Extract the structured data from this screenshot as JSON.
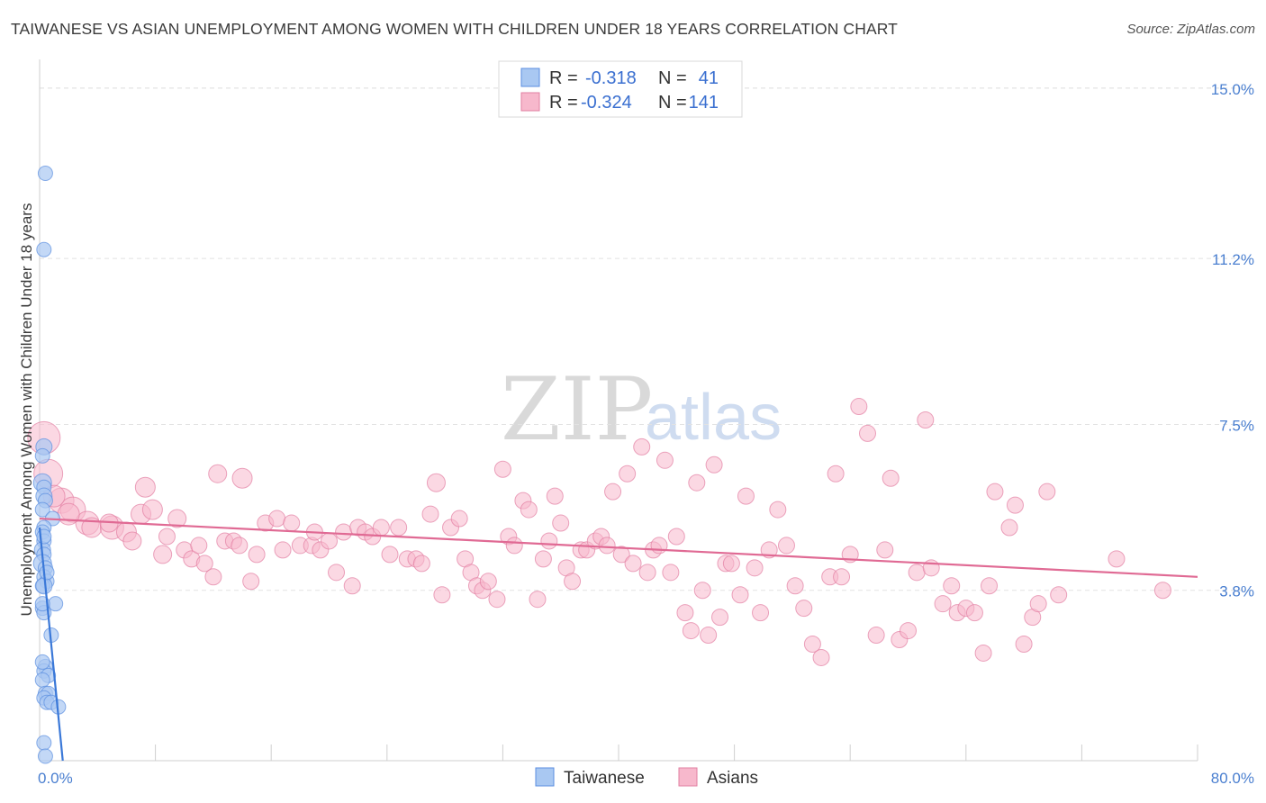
{
  "title": "TAIWANESE VS ASIAN UNEMPLOYMENT AMONG WOMEN WITH CHILDREN UNDER 18 YEARS CORRELATION CHART",
  "source": "Source: ZipAtlas.com",
  "watermark": {
    "zip": "ZIP",
    "atlas": "atlas"
  },
  "legend": {
    "rows": [
      {
        "r_label": "R =",
        "r_value": "-0.318",
        "n_label": "N =",
        "n_value": "41",
        "color": "#a9c8f2",
        "stroke": "#5b8ee0"
      },
      {
        "r_label": "R =",
        "r_value": "-0.324",
        "n_label": "N =",
        "n_value": "141",
        "color": "#f7b8cc",
        "stroke": "#e27fa2"
      }
    ]
  },
  "bottom_legend": [
    {
      "label": "Taiwanese",
      "color": "#a9c8f2",
      "stroke": "#5b8ee0"
    },
    {
      "label": "Asians",
      "color": "#f7b8cc",
      "stroke": "#e27fa2"
    }
  ],
  "chart_data": {
    "type": "scatter",
    "ylabel": "Unemployment Among Women with Children Under 18 years",
    "xlabel": "",
    "xlim": [
      0,
      80
    ],
    "ylim": [
      0,
      15.4
    ],
    "x_tick_labels": [
      {
        "value": 0,
        "label": "0.0%"
      },
      {
        "value": 80,
        "label": "80.0%"
      }
    ],
    "y_tick_labels": [
      {
        "value": 3.8,
        "label": "3.8%"
      },
      {
        "value": 7.5,
        "label": "7.5%"
      },
      {
        "value": 11.2,
        "label": "11.2%"
      },
      {
        "value": 15.0,
        "label": "15.0%"
      }
    ],
    "x_minor_ticks": [
      8,
      16,
      24,
      32,
      40,
      48,
      56,
      64,
      72,
      80
    ],
    "grid": true,
    "legend_position": "top-center",
    "series": [
      {
        "name": "Taiwanese",
        "color": "#a9c8f2",
        "stroke": "#5b8ee0",
        "line_color": "#3a78d8",
        "trend": {
          "x0": 0.0,
          "y0": 5.2,
          "x1": 1.6,
          "y1": 0.0
        },
        "points": [
          [
            0.4,
            13.1,
            8
          ],
          [
            0.3,
            11.4,
            8
          ],
          [
            0.3,
            7.0,
            9
          ],
          [
            0.2,
            6.8,
            8
          ],
          [
            0.2,
            6.2,
            10
          ],
          [
            0.3,
            6.1,
            8
          ],
          [
            0.3,
            5.9,
            9
          ],
          [
            0.4,
            5.8,
            8
          ],
          [
            0.2,
            5.6,
            8
          ],
          [
            0.9,
            5.4,
            8
          ],
          [
            0.3,
            5.2,
            8
          ],
          [
            0.2,
            5.1,
            8
          ],
          [
            0.3,
            4.9,
            8
          ],
          [
            0.2,
            4.7,
            9
          ],
          [
            0.3,
            4.6,
            8
          ],
          [
            0.2,
            4.4,
            10
          ],
          [
            0.4,
            4.3,
            8
          ],
          [
            0.3,
            4.1,
            8
          ],
          [
            0.5,
            4.0,
            8
          ],
          [
            0.2,
            3.9,
            8
          ],
          [
            0.3,
            3.9,
            9
          ],
          [
            1.1,
            3.5,
            8
          ],
          [
            0.2,
            3.4,
            8
          ],
          [
            0.3,
            3.3,
            8
          ],
          [
            0.8,
            2.8,
            8
          ],
          [
            0.4,
            2.1,
            8
          ],
          [
            0.3,
            2.0,
            8
          ],
          [
            0.6,
            1.9,
            8
          ],
          [
            0.2,
            1.8,
            8
          ],
          [
            0.4,
            1.5,
            8
          ],
          [
            0.6,
            1.5,
            8
          ],
          [
            0.3,
            1.4,
            8
          ],
          [
            0.5,
            1.3,
            8
          ],
          [
            0.8,
            1.3,
            8
          ],
          [
            1.3,
            1.2,
            8
          ],
          [
            0.3,
            0.4,
            8
          ],
          [
            0.4,
            0.1,
            8
          ],
          [
            0.2,
            3.5,
            8
          ],
          [
            0.5,
            4.2,
            8
          ],
          [
            0.3,
            5.0,
            8
          ],
          [
            0.2,
            2.2,
            8
          ]
        ]
      },
      {
        "name": "Asians",
        "color": "#f7b8cc",
        "stroke": "#e27fa2",
        "line_color": "#e06a94",
        "trend": {
          "x0": 0.0,
          "y0": 5.4,
          "x1": 80.0,
          "y1": 4.1
        },
        "points": [
          [
            0.3,
            7.2,
            18
          ],
          [
            0.6,
            6.4,
            16
          ],
          [
            1.5,
            5.8,
            14
          ],
          [
            2.3,
            5.6,
            14
          ],
          [
            3.3,
            5.3,
            13
          ],
          [
            3.6,
            5.2,
            11
          ],
          [
            5.0,
            5.2,
            13
          ],
          [
            4.8,
            5.3,
            10
          ],
          [
            6.0,
            5.1,
            11
          ],
          [
            6.4,
            4.9,
            10
          ],
          [
            7.0,
            5.5,
            11
          ],
          [
            7.3,
            6.1,
            11
          ],
          [
            7.8,
            5.6,
            11
          ],
          [
            8.5,
            4.6,
            10
          ],
          [
            8.8,
            5.0,
            9
          ],
          [
            9.5,
            5.4,
            10
          ],
          [
            10.0,
            4.7,
            9
          ],
          [
            10.5,
            4.5,
            9
          ],
          [
            11.0,
            4.8,
            9
          ],
          [
            11.4,
            4.4,
            9
          ],
          [
            12.0,
            4.1,
            9
          ],
          [
            12.3,
            6.4,
            10
          ],
          [
            12.8,
            4.9,
            9
          ],
          [
            13.4,
            4.9,
            9
          ],
          [
            13.8,
            4.8,
            9
          ],
          [
            14.0,
            6.3,
            11
          ],
          [
            14.6,
            4.0,
            9
          ],
          [
            15.0,
            4.6,
            9
          ],
          [
            15.6,
            5.3,
            9
          ],
          [
            16.4,
            5.4,
            9
          ],
          [
            16.8,
            4.7,
            9
          ],
          [
            17.4,
            5.3,
            9
          ],
          [
            18.0,
            4.8,
            9
          ],
          [
            18.8,
            4.8,
            9
          ],
          [
            19.0,
            5.1,
            9
          ],
          [
            19.4,
            4.7,
            9
          ],
          [
            20.0,
            4.9,
            9
          ],
          [
            20.5,
            4.2,
            9
          ],
          [
            21.0,
            5.1,
            9
          ],
          [
            21.6,
            3.9,
            9
          ],
          [
            22.0,
            5.2,
            9
          ],
          [
            22.5,
            5.1,
            9
          ],
          [
            23.0,
            5.0,
            9
          ],
          [
            23.6,
            5.2,
            9
          ],
          [
            24.2,
            4.6,
            9
          ],
          [
            24.8,
            5.2,
            9
          ],
          [
            25.4,
            4.5,
            9
          ],
          [
            26.0,
            4.5,
            9
          ],
          [
            26.4,
            4.4,
            9
          ],
          [
            27.0,
            5.5,
            9
          ],
          [
            27.4,
            6.2,
            10
          ],
          [
            27.8,
            3.7,
            9
          ],
          [
            28.4,
            5.2,
            9
          ],
          [
            29.0,
            5.4,
            9
          ],
          [
            29.4,
            4.5,
            9
          ],
          [
            29.8,
            4.2,
            9
          ],
          [
            30.2,
            3.9,
            9
          ],
          [
            30.6,
            3.8,
            9
          ],
          [
            31.0,
            4.0,
            9
          ],
          [
            31.6,
            3.6,
            9
          ],
          [
            32.0,
            6.5,
            9
          ],
          [
            32.4,
            5.0,
            9
          ],
          [
            32.8,
            4.8,
            9
          ],
          [
            33.4,
            5.8,
            9
          ],
          [
            33.8,
            5.6,
            9
          ],
          [
            34.4,
            3.6,
            9
          ],
          [
            34.8,
            4.5,
            9
          ],
          [
            35.2,
            4.9,
            9
          ],
          [
            35.6,
            5.9,
            9
          ],
          [
            36.0,
            5.3,
            9
          ],
          [
            36.4,
            4.3,
            9
          ],
          [
            36.8,
            4.0,
            9
          ],
          [
            37.4,
            4.7,
            9
          ],
          [
            37.8,
            4.7,
            9
          ],
          [
            38.4,
            4.9,
            9
          ],
          [
            38.8,
            5.0,
            9
          ],
          [
            39.2,
            4.8,
            9
          ],
          [
            39.6,
            6.0,
            9
          ],
          [
            40.2,
            4.6,
            9
          ],
          [
            40.6,
            6.4,
            9
          ],
          [
            41.0,
            4.4,
            9
          ],
          [
            41.6,
            7.0,
            9
          ],
          [
            42.0,
            4.2,
            9
          ],
          [
            42.4,
            4.7,
            9
          ],
          [
            42.8,
            4.8,
            9
          ],
          [
            43.2,
            6.7,
            9
          ],
          [
            43.6,
            4.2,
            9
          ],
          [
            44.0,
            5.0,
            9
          ],
          [
            44.6,
            3.3,
            9
          ],
          [
            45.0,
            2.9,
            9
          ],
          [
            45.4,
            6.2,
            9
          ],
          [
            45.8,
            3.8,
            9
          ],
          [
            46.2,
            2.8,
            9
          ],
          [
            46.6,
            6.6,
            9
          ],
          [
            47.0,
            3.2,
            9
          ],
          [
            47.4,
            4.4,
            9
          ],
          [
            47.8,
            4.4,
            9
          ],
          [
            48.4,
            3.7,
            9
          ],
          [
            48.8,
            5.9,
            9
          ],
          [
            49.4,
            4.3,
            9
          ],
          [
            49.8,
            3.3,
            9
          ],
          [
            50.4,
            4.7,
            9
          ],
          [
            51.0,
            5.6,
            9
          ],
          [
            51.6,
            4.8,
            9
          ],
          [
            52.2,
            3.9,
            9
          ],
          [
            52.8,
            3.4,
            9
          ],
          [
            53.4,
            2.6,
            9
          ],
          [
            54.0,
            2.3,
            9
          ],
          [
            54.6,
            4.1,
            9
          ],
          [
            55.0,
            6.4,
            9
          ],
          [
            55.4,
            4.1,
            9
          ],
          [
            56.0,
            4.6,
            9
          ],
          [
            56.6,
            7.9,
            9
          ],
          [
            57.2,
            7.3,
            9
          ],
          [
            57.8,
            2.8,
            9
          ],
          [
            58.4,
            4.7,
            9
          ],
          [
            58.8,
            6.3,
            9
          ],
          [
            59.4,
            2.7,
            9
          ],
          [
            60.0,
            2.9,
            9
          ],
          [
            60.6,
            4.2,
            9
          ],
          [
            61.2,
            7.6,
            9
          ],
          [
            61.6,
            4.3,
            9
          ],
          [
            62.4,
            3.5,
            9
          ],
          [
            63.0,
            3.9,
            9
          ],
          [
            63.4,
            3.3,
            9
          ],
          [
            64.0,
            3.4,
            9
          ],
          [
            64.6,
            3.3,
            9
          ],
          [
            65.2,
            2.4,
            9
          ],
          [
            65.6,
            3.9,
            9
          ],
          [
            66.0,
            6.0,
            9
          ],
          [
            67.0,
            5.2,
            9
          ],
          [
            67.4,
            5.7,
            9
          ],
          [
            68.0,
            2.6,
            9
          ],
          [
            68.6,
            3.2,
            9
          ],
          [
            69.0,
            3.5,
            9
          ],
          [
            69.6,
            6.0,
            9
          ],
          [
            70.4,
            3.7,
            9
          ],
          [
            74.4,
            4.5,
            9
          ],
          [
            77.6,
            3.8,
            9
          ],
          [
            1.0,
            5.9,
            12
          ],
          [
            2.0,
            5.5,
            12
          ]
        ]
      }
    ]
  }
}
